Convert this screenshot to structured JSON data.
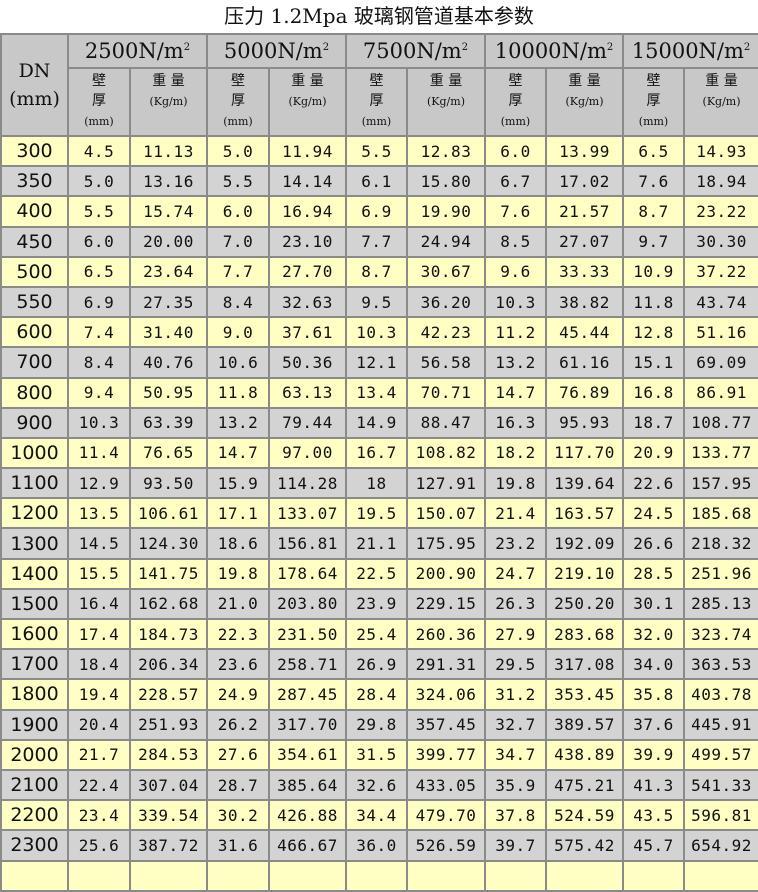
{
  "title": "压力 1.2Mpa 玻璃钢管道基本参数",
  "header": {
    "dn_label": "DN",
    "dn_unit": "(mm)",
    "stiffness": [
      {
        "value": "2500N/m",
        "sup": "2"
      },
      {
        "value": "5000N/m",
        "sup": "2"
      },
      {
        "value": "7500N/m",
        "sup": "2"
      },
      {
        "value": "10000N/m",
        "sup": "2"
      },
      {
        "value": "15000N/m",
        "sup": "2"
      }
    ],
    "thickness_label_1": "壁",
    "thickness_label_2": "厚",
    "thickness_unit": "(mm)",
    "weight_label": "重 量",
    "weight_unit": "(Kg/m)"
  },
  "colors": {
    "odd_row": "#ffffc4",
    "even_row": "#d3d3d3",
    "header": "#c8c8c8"
  },
  "rows": [
    [
      "300",
      "4.5",
      "11.13",
      "5.0",
      "11.94",
      "5.5",
      "12.83",
      "6.0",
      "13.99",
      "6.5",
      "14.93"
    ],
    [
      "350",
      "5.0",
      "13.16",
      "5.5",
      "14.14",
      "6.1",
      "15.80",
      "6.7",
      "17.02",
      "7.6",
      "18.94"
    ],
    [
      "400",
      "5.5",
      "15.74",
      "6.0",
      "16.94",
      "6.9",
      "19.90",
      "7.6",
      "21.57",
      "8.7",
      "23.22"
    ],
    [
      "450",
      "6.0",
      "20.00",
      "7.0",
      "23.10",
      "7.7",
      "24.94",
      "8.5",
      "27.07",
      "9.7",
      "30.30"
    ],
    [
      "500",
      "6.5",
      "23.64",
      "7.7",
      "27.70",
      "8.7",
      "30.67",
      "9.6",
      "33.33",
      "10.9",
      "37.22"
    ],
    [
      "550",
      "6.9",
      "27.35",
      "8.4",
      "32.63",
      "9.5",
      "36.20",
      "10.3",
      "38.82",
      "11.8",
      "43.74"
    ],
    [
      "600",
      "7.4",
      "31.40",
      "9.0",
      "37.61",
      "10.3",
      "42.23",
      "11.2",
      "45.44",
      "12.8",
      "51.16"
    ],
    [
      "700",
      "8.4",
      "40.76",
      "10.6",
      "50.36",
      "12.1",
      "56.58",
      "13.2",
      "61.16",
      "15.1",
      "69.09"
    ],
    [
      "800",
      "9.4",
      "50.95",
      "11.8",
      "63.13",
      "13.4",
      "70.71",
      "14.7",
      "76.89",
      "16.8",
      "86.91"
    ],
    [
      "900",
      "10.3",
      "63.39",
      "13.2",
      "79.44",
      "14.9",
      "88.47",
      "16.3",
      "95.93",
      "18.7",
      "108.77"
    ],
    [
      "1000",
      "11.4",
      "76.65",
      "14.7",
      "97.00",
      "16.7",
      "108.82",
      "18.2",
      "117.70",
      "20.9",
      "133.77"
    ],
    [
      "1100",
      "12.9",
      "93.50",
      "15.9",
      "114.28",
      "18",
      "127.91",
      "19.8",
      "139.64",
      "22.6",
      "157.95"
    ],
    [
      "1200",
      "13.5",
      "106.61",
      "17.1",
      "133.07",
      "19.5",
      "150.07",
      "21.4",
      "163.57",
      "24.5",
      "185.68"
    ],
    [
      "1300",
      "14.5",
      "124.30",
      "18.6",
      "156.81",
      "21.1",
      "175.95",
      "23.2",
      "192.09",
      "26.6",
      "218.32"
    ],
    [
      "1400",
      "15.5",
      "141.75",
      "19.8",
      "178.64",
      "22.5",
      "200.90",
      "24.7",
      "219.10",
      "28.5",
      "251.96"
    ],
    [
      "1500",
      "16.4",
      "162.68",
      "21.0",
      "203.80",
      "23.9",
      "229.15",
      "26.3",
      "250.20",
      "30.1",
      "285.13"
    ],
    [
      "1600",
      "17.4",
      "184.73",
      "22.3",
      "231.50",
      "25.4",
      "260.36",
      "27.9",
      "283.68",
      "32.0",
      "323.74"
    ],
    [
      "1700",
      "18.4",
      "206.34",
      "23.6",
      "258.71",
      "26.9",
      "291.31",
      "29.5",
      "317.08",
      "34.0",
      "363.53"
    ],
    [
      "1800",
      "19.4",
      "228.57",
      "24.9",
      "287.45",
      "28.4",
      "324.06",
      "31.2",
      "353.45",
      "35.8",
      "403.78"
    ],
    [
      "1900",
      "20.4",
      "251.93",
      "26.2",
      "317.70",
      "29.8",
      "357.45",
      "32.7",
      "389.57",
      "37.6",
      "445.91"
    ],
    [
      "2000",
      "21.7",
      "284.53",
      "27.6",
      "354.61",
      "31.5",
      "399.77",
      "34.7",
      "438.89",
      "39.9",
      "499.57"
    ],
    [
      "2100",
      "22.4",
      "307.04",
      "28.7",
      "385.64",
      "32.6",
      "433.05",
      "35.9",
      "475.21",
      "41.3",
      "541.33"
    ],
    [
      "2200",
      "23.4",
      "339.54",
      "30.2",
      "426.88",
      "34.4",
      "479.70",
      "37.8",
      "524.59",
      "43.5",
      "596.81"
    ],
    [
      "2300",
      "25.6",
      "387.72",
      "31.6",
      "466.67",
      "36.0",
      "526.59",
      "39.7",
      "575.42",
      "45.7",
      "654.92"
    ]
  ]
}
